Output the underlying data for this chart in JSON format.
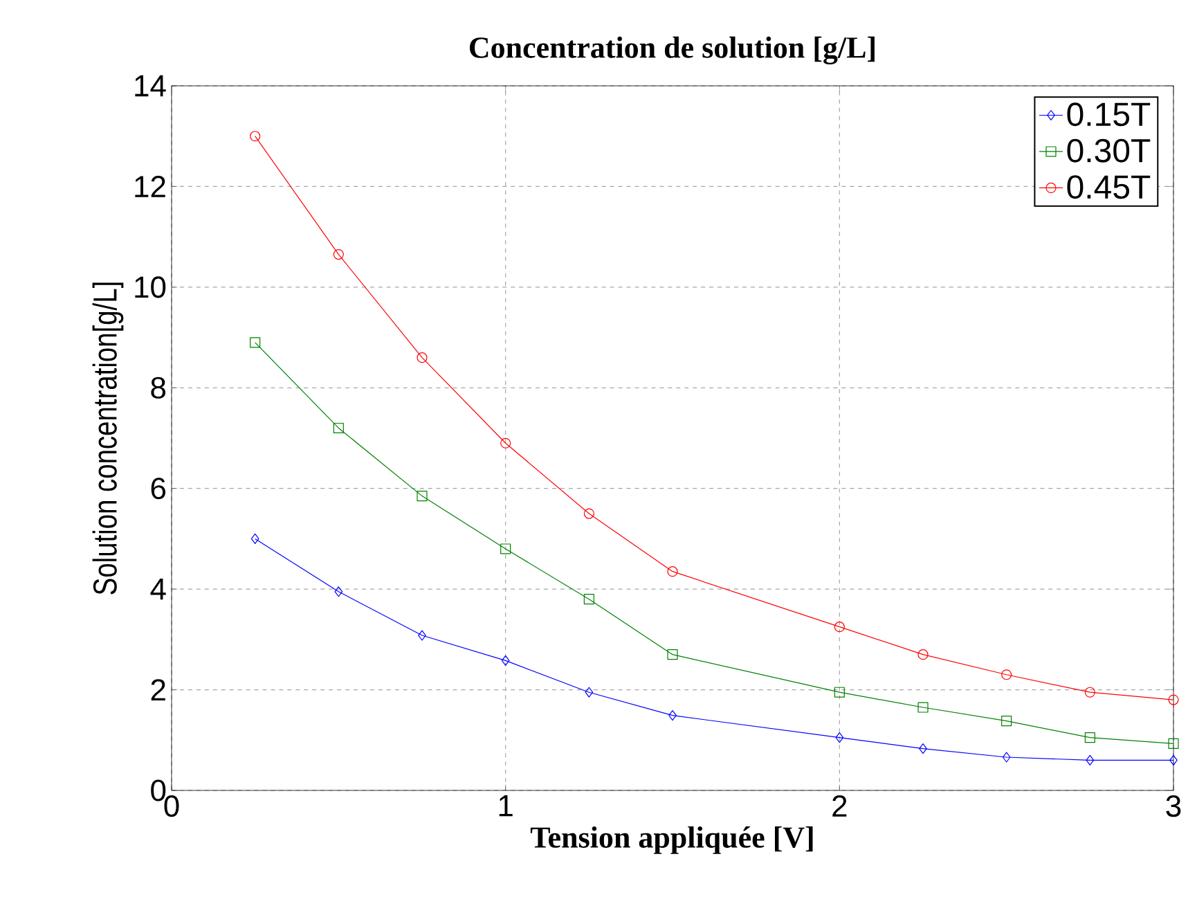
{
  "chart_data": {
    "type": "line",
    "title": "Concentration de solution [g/L]",
    "xlabel": "Tension appliquée [V]",
    "ylabel": "Solution concentration[g/L]",
    "x": [
      0.25,
      0.5,
      0.75,
      1,
      1.25,
      1.5,
      2,
      2.25,
      2.5,
      2.75,
      3
    ],
    "series": [
      {
        "name": "0.15T",
        "color": "#0000ff",
        "marker": "diamond",
        "values": [
          5.0,
          3.95,
          3.08,
          2.58,
          1.95,
          1.49,
          1.05,
          0.83,
          0.66,
          0.6,
          0.6
        ]
      },
      {
        "name": "0.30T",
        "color": "#008000",
        "marker": "square",
        "values": [
          8.9,
          7.2,
          5.85,
          4.8,
          3.8,
          2.7,
          1.95,
          1.65,
          1.38,
          1.05,
          0.93
        ]
      },
      {
        "name": "0.45T",
        "color": "#ff0000",
        "marker": "circle",
        "values": [
          13.0,
          10.65,
          8.6,
          6.9,
          5.5,
          4.35,
          3.25,
          2.7,
          2.3,
          1.95,
          1.8
        ]
      }
    ],
    "xlim": [
      0,
      3
    ],
    "ylim": [
      0,
      14
    ],
    "xticks": [
      0,
      1,
      2,
      3
    ],
    "yticks": [
      0,
      2,
      4,
      6,
      8,
      10,
      12,
      14
    ],
    "grid": true,
    "legend": "top right",
    "line_style": "solid"
  }
}
